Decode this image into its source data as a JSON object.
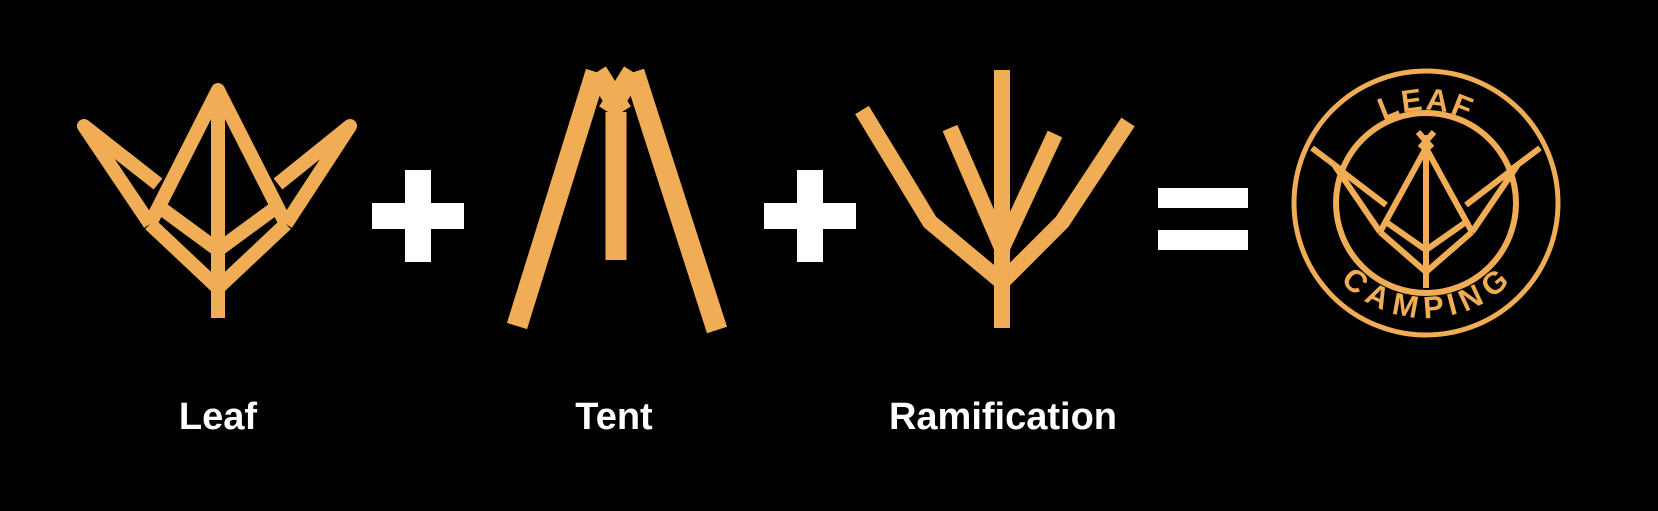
{
  "colors": {
    "background": "#000000",
    "accent": "#F0AD55",
    "operator": "#FFFFFF",
    "label": "#FFFFFF"
  },
  "icons": [
    "leaf-icon",
    "tent-icon",
    "ramification-icon",
    "leaf-camping-logo"
  ],
  "operators": [
    "plus-icon",
    "plus-icon",
    "equals-icon"
  ],
  "labels": {
    "leaf": "Leaf",
    "tent": "Tent",
    "ramification": "Ramification"
  },
  "logo": {
    "top_text": "LEAF",
    "bottom_text": "CAMPING"
  }
}
